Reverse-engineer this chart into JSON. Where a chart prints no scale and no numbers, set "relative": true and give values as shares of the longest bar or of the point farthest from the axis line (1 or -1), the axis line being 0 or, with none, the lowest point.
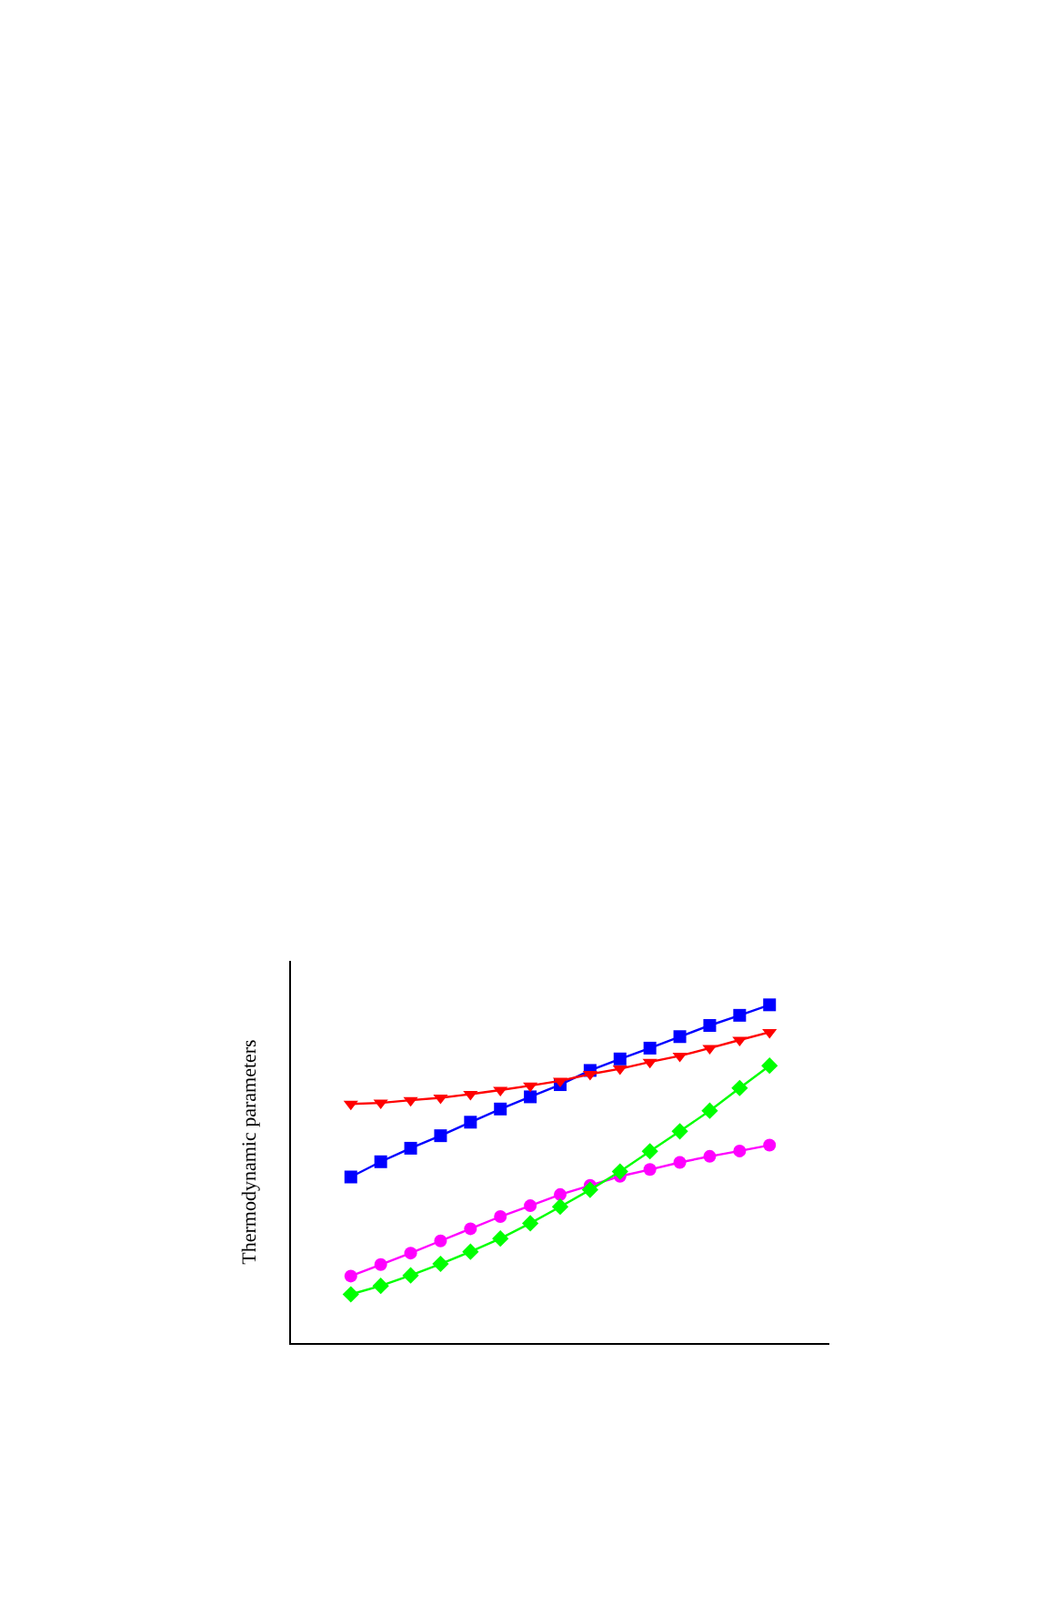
{
  "chart_data": {
    "type": "line",
    "relative": true,
    "ylabel": "Thermodynamic parameters",
    "categories": [
      null,
      null,
      null,
      null,
      null,
      null,
      null,
      null,
      null,
      null,
      null,
      null,
      null,
      null,
      null
    ],
    "series": [
      {
        "color": "#ff00ff",
        "marker": "circle",
        "values": [
          0.198,
          0.232,
          0.266,
          0.302,
          0.338,
          0.374,
          0.406,
          0.439,
          0.466,
          0.493,
          0.513,
          0.534,
          0.552,
          0.568,
          0.585
        ]
      },
      {
        "color": "#0000ff",
        "marker": "square",
        "values": [
          0.491,
          0.536,
          0.576,
          0.613,
          0.653,
          0.692,
          0.728,
          0.764,
          0.806,
          0.84,
          0.872,
          0.906,
          0.939,
          0.969,
          1
        ]
      },
      {
        "color": "#00ff00",
        "marker": "diamond",
        "values": [
          0.144,
          0.169,
          0.2,
          0.234,
          0.27,
          0.309,
          0.354,
          0.403,
          0.453,
          0.507,
          0.567,
          0.626,
          0.687,
          0.754,
          0.82
        ]
      },
      {
        "color": "#ff0000",
        "marker": "triangle",
        "values": [
          0.707,
          0.71,
          0.718,
          0.725,
          0.736,
          0.748,
          0.761,
          0.775,
          0.795,
          0.811,
          0.831,
          0.849,
          0.872,
          0.896,
          0.919
        ]
      }
    ],
    "legend": false
  }
}
